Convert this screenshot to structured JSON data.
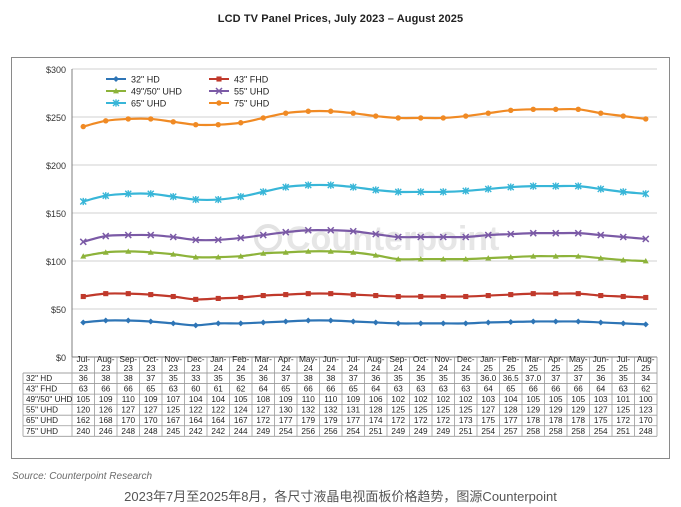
{
  "page": {
    "source_note": "Source: Counterpoint Research",
    "caption": "2023年7月至2025年8月，各尺寸液晶电视面板价格趋势，图源Counterpoint",
    "watermark": "Counterpoint"
  },
  "chart_data": {
    "type": "line",
    "title": "LCD TV Panel Prices, July 2023 – August 2025",
    "xlabel": "",
    "ylabel": "",
    "ylim": [
      0,
      300
    ],
    "yticks": [
      "$0",
      "$50",
      "$100",
      "$150",
      "$200",
      "$250",
      "$300"
    ],
    "ytick_values": [
      0,
      50,
      100,
      150,
      200,
      250,
      300
    ],
    "grid": true,
    "legend_position": "top-left",
    "categories": [
      [
        "Jul-",
        "23"
      ],
      [
        "Aug-",
        "23"
      ],
      [
        "Sep-",
        "23"
      ],
      [
        "Oct-",
        "23"
      ],
      [
        "Nov-",
        "23"
      ],
      [
        "Dec-",
        "23"
      ],
      [
        "Jan-",
        "24"
      ],
      [
        "Feb-",
        "24"
      ],
      [
        "Mar-",
        "24"
      ],
      [
        "Apr-",
        "24"
      ],
      [
        "May-",
        "24"
      ],
      [
        "Jun-",
        "24"
      ],
      [
        "Jul-",
        "24"
      ],
      [
        "Aug-",
        "24"
      ],
      [
        "Sep-",
        "24"
      ],
      [
        "Oct-",
        "24"
      ],
      [
        "Nov-",
        "24"
      ],
      [
        "Dec-",
        "24"
      ],
      [
        "Jan-",
        "25"
      ],
      [
        "Feb-",
        "25"
      ],
      [
        "Mar-",
        "25"
      ],
      [
        "Apr-",
        "25"
      ],
      [
        "May-",
        "25"
      ],
      [
        "Jun-",
        "25"
      ],
      [
        "Jul-",
        "25"
      ],
      [
        "Aug-",
        "25"
      ]
    ],
    "series": [
      {
        "name": "32\" HD",
        "color": "#2e75b6",
        "marker": "diamond",
        "values": [
          36,
          38,
          38,
          37,
          35,
          33,
          35,
          35,
          36,
          37,
          38,
          38,
          37,
          36,
          35,
          35,
          35,
          35,
          36,
          36.5,
          37,
          37,
          37,
          36,
          35,
          34
        ],
        "labels": [
          "36",
          "38",
          "38",
          "37",
          "35",
          "33",
          "35",
          "35",
          "36",
          "37",
          "38",
          "38",
          "37",
          "36",
          "35",
          "35",
          "35",
          "35",
          "36.0",
          "36.5",
          "37.0",
          "37",
          "37",
          "36",
          "35",
          "34"
        ]
      },
      {
        "name": "43\" FHD",
        "color": "#c0392b",
        "marker": "square",
        "values": [
          63,
          66,
          66,
          65,
          63,
          60,
          61,
          62,
          64,
          65,
          66,
          66,
          65,
          64,
          63,
          63,
          63,
          63,
          64,
          65,
          66,
          66,
          66,
          64,
          63,
          62
        ],
        "labels": [
          "63",
          "66",
          "66",
          "65",
          "63",
          "60",
          "61",
          "62",
          "64",
          "65",
          "66",
          "66",
          "65",
          "64",
          "63",
          "63",
          "63",
          "63",
          "64",
          "65",
          "66",
          "66",
          "66",
          "64",
          "63",
          "62"
        ]
      },
      {
        "name": "49\"/50\" UHD",
        "color": "#8db33a",
        "marker": "triangle",
        "values": [
          105,
          109,
          110,
          109,
          107,
          104,
          104,
          105,
          108,
          109,
          110,
          110,
          109,
          106,
          102,
          102,
          102,
          102,
          103,
          104,
          105,
          105,
          105,
          103,
          101,
          100
        ],
        "labels": [
          "105",
          "109",
          "110",
          "109",
          "107",
          "104",
          "104",
          "105",
          "108",
          "109",
          "110",
          "110",
          "109",
          "106",
          "102",
          "102",
          "102",
          "102",
          "103",
          "104",
          "105",
          "105",
          "105",
          "103",
          "101",
          "100"
        ]
      },
      {
        "name": "55\" UHD",
        "color": "#7b5aa6",
        "marker": "x",
        "values": [
          120,
          126,
          127,
          127,
          125,
          122,
          122,
          124,
          127,
          130,
          132,
          132,
          131,
          128,
          125,
          125,
          125,
          125,
          127,
          128,
          129,
          129,
          129,
          127,
          125,
          123
        ],
        "labels": [
          "120",
          "126",
          "127",
          "127",
          "125",
          "122",
          "122",
          "124",
          "127",
          "130",
          "132",
          "132",
          "131",
          "128",
          "125",
          "125",
          "125",
          "125",
          "127",
          "128",
          "129",
          "129",
          "129",
          "127",
          "125",
          "123"
        ]
      },
      {
        "name": "65\" UHD",
        "color": "#38b6d8",
        "marker": "star",
        "values": [
          162,
          168,
          170,
          170,
          167,
          164,
          164,
          167,
          172,
          177,
          179,
          179,
          177,
          174,
          172,
          172,
          172,
          173,
          175,
          177,
          178,
          178,
          178,
          175,
          172,
          170
        ],
        "labels": [
          "162",
          "168",
          "170",
          "170",
          "167",
          "164",
          "164",
          "167",
          "172",
          "177",
          "179",
          "179",
          "177",
          "174",
          "172",
          "172",
          "172",
          "173",
          "175",
          "177",
          "178",
          "178",
          "178",
          "175",
          "172",
          "170"
        ]
      },
      {
        "name": "75\" UHD",
        "color": "#f08a24",
        "marker": "circle",
        "values": [
          240,
          246,
          248,
          248,
          245,
          242,
          242,
          244,
          249,
          254,
          256,
          256,
          254,
          251,
          249,
          249,
          249,
          251,
          254,
          257,
          258,
          258,
          258,
          254,
          251,
          248
        ],
        "labels": [
          "240",
          "246",
          "248",
          "248",
          "245",
          "242",
          "242",
          "244",
          "249",
          "254",
          "256",
          "256",
          "254",
          "251",
          "249",
          "249",
          "249",
          "251",
          "254",
          "257",
          "258",
          "258",
          "258",
          "254",
          "251",
          "248"
        ]
      }
    ]
  }
}
